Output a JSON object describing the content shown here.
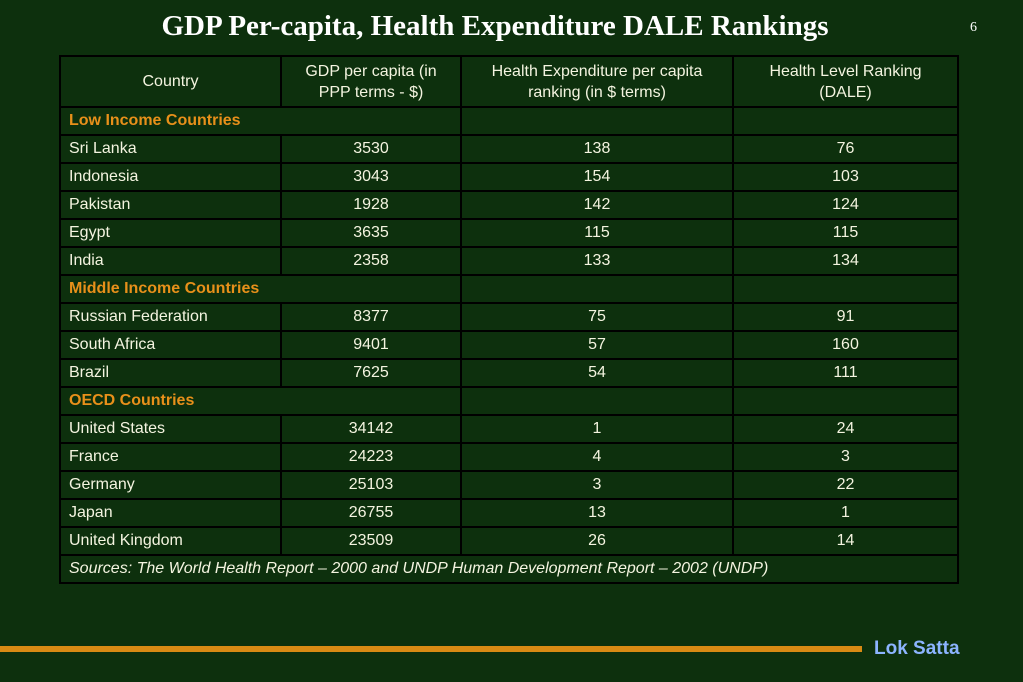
{
  "slide": {
    "title": "GDP Per-capita, Health Expenditure DALE Rankings",
    "page_number": "6",
    "brand": "Lok Satta"
  },
  "table": {
    "headers": [
      "Country",
      "GDP per capita  (in PPP terms - $)",
      "Health Expenditure per capita ranking (in $ terms)",
      "Health Level Ranking (DALE)"
    ],
    "groups": [
      {
        "label": "Low Income Countries",
        "rows": [
          [
            "Sri Lanka",
            "3530",
            "138",
            "76"
          ],
          [
            "Indonesia",
            "3043",
            "154",
            "103"
          ],
          [
            "Pakistan",
            "1928",
            "142",
            "124"
          ],
          [
            "Egypt",
            "3635",
            "115",
            "115"
          ],
          [
            "India",
            "2358",
            "133",
            "134"
          ]
        ]
      },
      {
        "label": "Middle Income Countries",
        "rows": [
          [
            "Russian Federation",
            "8377",
            "75",
            "91"
          ],
          [
            "South Africa",
            "9401",
            "57",
            "160"
          ],
          [
            "Brazil",
            "7625",
            "54",
            "111"
          ]
        ]
      },
      {
        "label": "OECD Countries",
        "rows": [
          [
            "United States",
            "34142",
            "1",
            "24"
          ],
          [
            "France",
            "24223",
            "4",
            "3"
          ],
          [
            "Germany",
            "25103",
            "3",
            "22"
          ],
          [
            "Japan",
            "26755",
            "13",
            "1"
          ],
          [
            "United Kingdom",
            "23509",
            "26",
            "14"
          ]
        ]
      }
    ],
    "source": "Sources: The World Health Report – 2000 and UNDP Human Development Report – 2002 (UNDP)"
  },
  "colors": {
    "background": "#0d300d",
    "group_label": "#e8901a",
    "footer_bar": "#d88a14",
    "brand": "#8cb4ff"
  }
}
